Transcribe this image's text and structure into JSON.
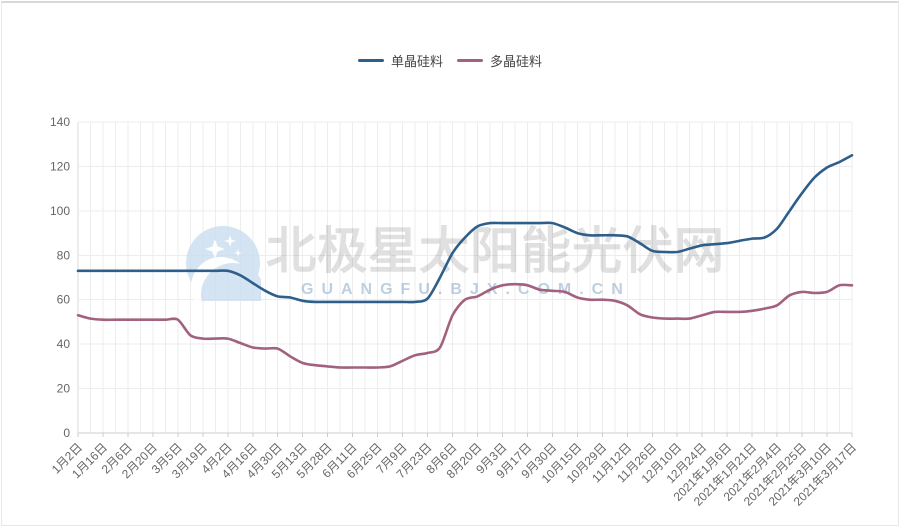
{
  "page": {
    "background": "#ffffff",
    "border_color": "#e7e7e7"
  },
  "watermark": {
    "title": "北极星太阳能光伏网",
    "subtitle": "GUANGFU.BJX.COM.CN",
    "icon": "bjx-star-moon-logo"
  },
  "legend": {
    "items": [
      {
        "label": "单晶硅料",
        "color": "#2e5f8a"
      },
      {
        "label": "多晶硅料",
        "color": "#a2617e"
      }
    ]
  },
  "chart_data": {
    "type": "line",
    "title": "",
    "xlabel": "",
    "ylabel": "",
    "ylim": [
      0,
      140
    ],
    "y_ticks": [
      0,
      20,
      40,
      60,
      80,
      100,
      120,
      140
    ],
    "grid": true,
    "legend_position": "top-center",
    "smooth": true,
    "x_label_every": 2,
    "x_labels": [
      "1月2日",
      "1月16日",
      "2月6日",
      "2月20日",
      "3月5日",
      "3月19日",
      "4月2日",
      "4月16日",
      "4月30日",
      "5月13日",
      "5月28日",
      "6月11日",
      "6月25日",
      "7月9日",
      "7月23日",
      "8月6日",
      "8月20日",
      "9月3日",
      "9月17日",
      "9月30日",
      "10月15日",
      "10月29日",
      "11月12日",
      "11月26日",
      "12月10日",
      "12月24日",
      "2021年1月6日",
      "2021年1月21日",
      "2021年2月4日",
      "2021年2月25日",
      "2021年3月10日",
      "2021年3月17日"
    ],
    "series": [
      {
        "name": "单晶硅料",
        "color": "#2e5f8a",
        "values": [
          73,
          73,
          73,
          73,
          73,
          73,
          73,
          73,
          73,
          73,
          73,
          73,
          73,
          71,
          67.5,
          64,
          61.5,
          61,
          59.5,
          59,
          59,
          59,
          59,
          59,
          59,
          59,
          59,
          59,
          60.5,
          70,
          81,
          88,
          93,
          94.5,
          94.5,
          94.5,
          94.5,
          94.5,
          94.5,
          92.5,
          90,
          89,
          89,
          89,
          88.5,
          85.5,
          82,
          81.5,
          81.5,
          83,
          84.5,
          85,
          85.5,
          86.5,
          87.5,
          88,
          92,
          100,
          108,
          115,
          119.5,
          122,
          125
        ]
      },
      {
        "name": "多晶硅料",
        "color": "#a2617e",
        "values": [
          53,
          51.5,
          51,
          51,
          51,
          51,
          51,
          51,
          51,
          44,
          42.5,
          42.5,
          42.5,
          40.5,
          38.5,
          38,
          38,
          34.5,
          31.5,
          30.5,
          30,
          29.5,
          29.5,
          29.5,
          29.5,
          30,
          32.5,
          35,
          36,
          38.5,
          53,
          60,
          61.5,
          64.5,
          66.5,
          67,
          66.5,
          64.5,
          64,
          63.5,
          61,
          60,
          60,
          59.5,
          57.5,
          53.5,
          52,
          51.5,
          51.5,
          51.5,
          53,
          54.5,
          54.5,
          54.5,
          55,
          56,
          57.5,
          62,
          63.5,
          63,
          63.5,
          66.5,
          66.5
        ]
      }
    ],
    "style": {
      "grid_color": "#ededed",
      "axis_color": "#cccccc",
      "tick_label_color": "#666666"
    }
  }
}
